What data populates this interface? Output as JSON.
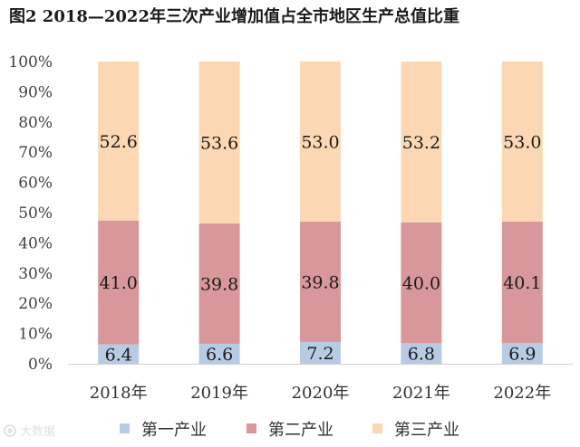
{
  "chart_data": {
    "type": "bar",
    "stacked": true,
    "title": "图2    2018—2022年三次产业增加值占全市地区生产总值比重",
    "categories": [
      "2018年",
      "2019年",
      "2020年",
      "2021年",
      "2022年"
    ],
    "series": [
      {
        "name": "第一产业",
        "color": "#b7cce4",
        "values": [
          6.4,
          6.6,
          7.2,
          6.8,
          6.9
        ]
      },
      {
        "name": "第二产业",
        "color": "#d8979b",
        "values": [
          41.0,
          39.8,
          39.8,
          40.0,
          40.1
        ]
      },
      {
        "name": "第三产业",
        "color": "#fbd8b3",
        "values": [
          52.6,
          53.6,
          53.0,
          53.2,
          53.0
        ]
      }
    ],
    "data_labels": [
      [
        "6.4",
        "6.6",
        "7.2",
        "6.8",
        "6.9"
      ],
      [
        "41.0",
        "39.8",
        "39.8",
        "40.0",
        "40.1"
      ],
      [
        "52.6",
        "53.6",
        "53.0",
        "53.2",
        "53.0"
      ]
    ],
    "yticks": [
      "0%",
      "10%",
      "20%",
      "30%",
      "40%",
      "50%",
      "60%",
      "70%",
      "80%",
      "90%",
      "100%"
    ],
    "ylim": [
      0,
      100
    ],
    "grid": false,
    "legend_position": "bottom"
  },
  "watermark": "大数据"
}
